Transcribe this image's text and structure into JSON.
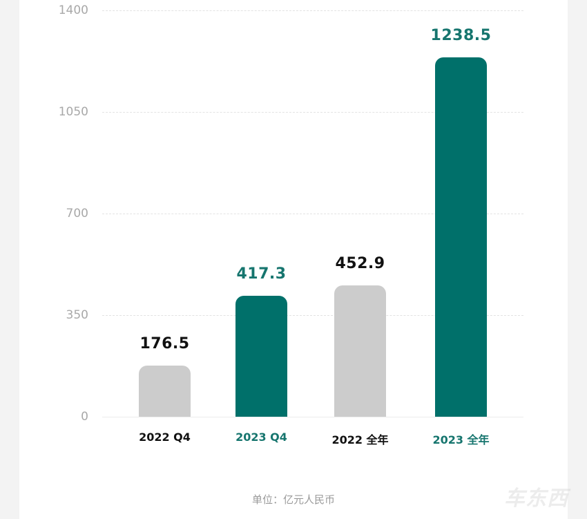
{
  "chart_data": {
    "type": "bar",
    "title": "",
    "xlabel": "",
    "ylabel": "",
    "unit": "单位：亿元人民币",
    "categories": [
      "2022 Q4",
      "2023 Q4",
      "2022 全年",
      "2023 全年"
    ],
    "values": [
      176.5,
      417.3,
      452.9,
      1238.5
    ],
    "value_labels": [
      "176.5",
      "417.3",
      "452.9",
      "1238.5"
    ],
    "ylim": [
      0,
      1400
    ],
    "yticks": [
      0,
      350,
      700,
      1050,
      1400
    ],
    "ytick_labels": [
      "0",
      "350",
      "700",
      "1050",
      "1400"
    ],
    "grid": true,
    "legend": null,
    "bar_colors": [
      "#cccccc",
      "#00706a",
      "#cccccc",
      "#00706a"
    ],
    "label_colors": [
      "#111111",
      "#16756e",
      "#111111",
      "#16756e"
    ]
  },
  "footer": {
    "unit_text": "单位：亿元人民币"
  },
  "watermark": {
    "text": "车东西"
  },
  "colors": {
    "accent": "#00706a",
    "muted_bar": "#cccccc",
    "axis_text": "#a8a8a8",
    "background": "#f3f3f3",
    "card": "#ffffff"
  }
}
